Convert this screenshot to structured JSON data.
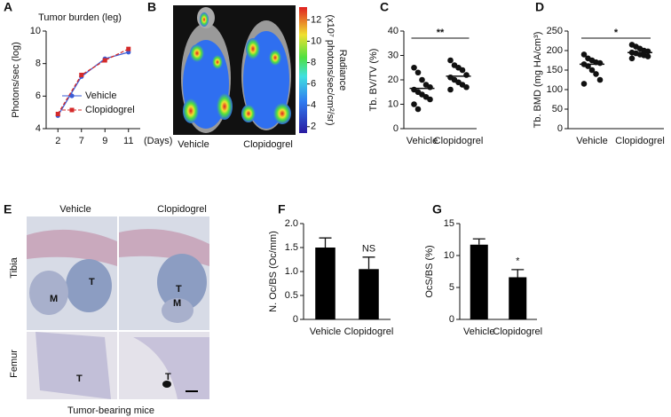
{
  "panel_letters": [
    "A",
    "B",
    "C",
    "D",
    "E",
    "F",
    "G"
  ],
  "imaging": {
    "conditions": [
      "Vehicle",
      "Clopidogrel"
    ],
    "colorbar_label": "Radiance",
    "colorbar_units": "(x10⁷ photons/sec/cm²/sr)",
    "colorbar_lim": [
      1.4,
      13.2
    ],
    "colorbar_ticks": [
      2,
      4,
      6,
      8,
      10,
      12
    ]
  },
  "histology": {
    "columns": [
      "Vehicle",
      "Clopidogrel"
    ],
    "rows": [
      "Tibia",
      "Femur"
    ],
    "caption": "Tumor-bearing mice",
    "region_labels": [
      "T",
      "M",
      "T",
      "M",
      "T",
      "T"
    ]
  },
  "chart_data": [
    {
      "type": "line",
      "title": "Tumor burden (leg)",
      "ylabel": "Photons/sec (log)",
      "xlabel": "(Days)",
      "categories": [
        "2",
        "7",
        "9",
        "11"
      ],
      "ylim": [
        4,
        10
      ],
      "yticks": [
        4,
        6,
        8,
        10
      ],
      "legend": "lower right",
      "series": [
        {
          "name": "Vehicle",
          "color": "#3a5bd6",
          "line_style": "solid",
          "marker": "circle",
          "values": [
            4.8,
            7.2,
            8.3,
            8.7
          ]
        },
        {
          "name": "Clopidogrel",
          "color": "#d42a2a",
          "line_style": "dashed",
          "marker": "square",
          "values": [
            4.9,
            7.3,
            8.2,
            8.9
          ]
        }
      ]
    },
    {
      "type": "strip",
      "ylabel": "Tb. BV/TV (%)",
      "categories": [
        "Vehicle",
        "Clopidogrel"
      ],
      "ylim": [
        0,
        40
      ],
      "yticks": [
        0,
        10,
        20,
        30,
        40
      ],
      "points": [
        [
          25,
          23,
          20,
          18,
          17,
          16,
          15,
          14,
          13,
          12,
          10,
          8
        ],
        [
          28,
          26,
          25,
          24,
          22,
          21,
          20,
          19,
          18,
          17,
          16
        ]
      ],
      "means": [
        16.5,
        21.5
      ],
      "significance": "**",
      "color": "#111111"
    },
    {
      "type": "strip",
      "ylabel": "Tb. BMD (mg HA/cm³)",
      "categories": [
        "Vehicle",
        "Clopidogrel"
      ],
      "ylim": [
        0,
        250
      ],
      "yticks": [
        0,
        50,
        100,
        150,
        200,
        250
      ],
      "points": [
        [
          190,
          180,
          175,
          170,
          168,
          165,
          160,
          150,
          140,
          125,
          115
        ],
        [
          215,
          210,
          205,
          200,
          198,
          195,
          193,
          190,
          188,
          185,
          180
        ]
      ],
      "means": [
        165,
        195
      ],
      "significance": "*",
      "color": "#111111"
    },
    {
      "type": "bar",
      "ylabel": "N. Oc/BS (Oc/mm)",
      "categories": [
        "Vehicle",
        "Clopidogrel"
      ],
      "ylim": [
        0,
        2
      ],
      "yticks": [
        0,
        0.5,
        {
          "value": 1,
          "label": "1.0"
        },
        1.5,
        {
          "value": 2,
          "label": "2.0"
        }
      ],
      "values": [
        1.5,
        1.05
      ],
      "errors": [
        0.2,
        0.25
      ],
      "annotations": [
        null,
        "NS"
      ],
      "color": "#000000"
    },
    {
      "type": "bar",
      "ylabel": "OcS/BS (%)",
      "categories": [
        "Vehicle",
        "Clopidogrel"
      ],
      "ylim": [
        0,
        15
      ],
      "yticks": [
        0,
        5,
        10,
        15
      ],
      "values": [
        11.7,
        6.6
      ],
      "errors": [
        0.9,
        1.2
      ],
      "annotations": [
        null,
        "*"
      ],
      "color": "#000000"
    }
  ]
}
